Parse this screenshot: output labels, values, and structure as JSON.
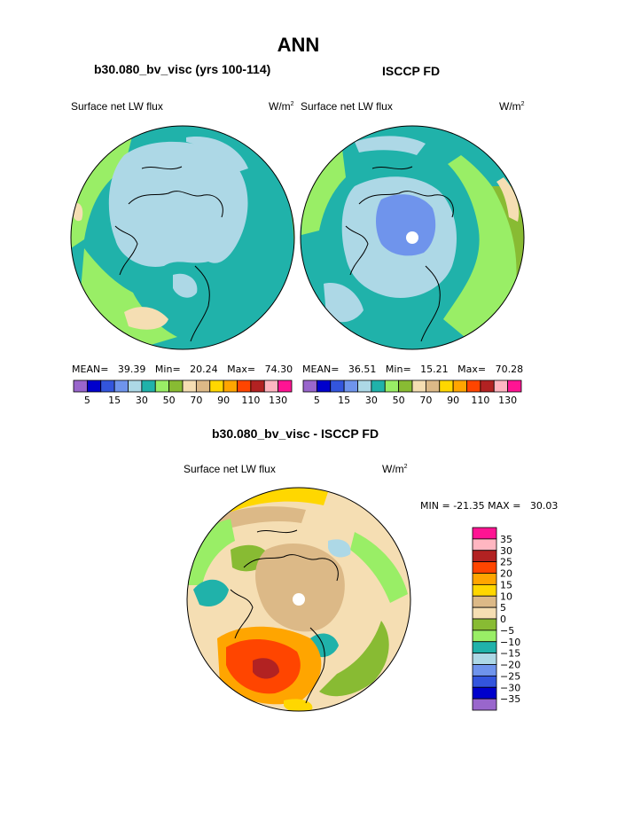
{
  "figure": {
    "season": "ANN",
    "colors": {
      "c1": "#9966cc",
      "c2": "#0000cc",
      "c3": "#3355dd",
      "c4": "#6f94ec",
      "c5": "#add8e6",
      "c6": "#20b2aa",
      "c7": "#99ee66",
      "c8": "#88bb33",
      "c9": "#f5deb3",
      "c10": "#dcb987",
      "c11": "#ffd700",
      "c12": "#ffa500",
      "c13": "#ff4500",
      "c14": "#b22222",
      "c15": "#ffb6c1",
      "c16": "#ff1493",
      "outline": "#000000"
    }
  },
  "chart_data": [
    {
      "type": "heatmap",
      "panel": "model",
      "case_title": "b30.080_bv_visc (yrs 100-114)",
      "variable": "Surface net LW flux",
      "units": "W/m",
      "units_sup": "2",
      "projection": "polar stereographic",
      "stats": {
        "mean_label": "MEAN=",
        "mean": "39.39",
        "min_label": "Min=",
        "min": "20.24",
        "max_label": "Max=",
        "max": "74.30"
      },
      "colorbar": {
        "orientation": "horizontal",
        "levels": [
          5,
          10,
          15,
          20,
          30,
          40,
          50,
          60,
          70,
          80,
          90,
          100,
          110,
          120,
          130
        ],
        "tick_labels": [
          "5",
          "15",
          "30",
          "50",
          "70",
          "90",
          "110",
          "130"
        ],
        "colors": [
          "#9966cc",
          "#0000cc",
          "#3355dd",
          "#6f94ec",
          "#add8e6",
          "#20b2aa",
          "#99ee66",
          "#88bb33",
          "#f5deb3",
          "#dcb987",
          "#ffd700",
          "#ffa500",
          "#ff4500",
          "#b22222",
          "#ffb6c1",
          "#ff1493"
        ]
      }
    },
    {
      "type": "heatmap",
      "panel": "obs",
      "case_title": "ISCCP FD",
      "variable": "Surface net LW flux",
      "units": "W/m",
      "units_sup": "2",
      "projection": "polar stereographic",
      "stats": {
        "mean_label": "MEAN=",
        "mean": "36.51",
        "min_label": "Min=",
        "min": "15.21",
        "max_label": "Max=",
        "max": "70.28"
      },
      "colorbar": {
        "orientation": "horizontal",
        "levels": [
          5,
          10,
          15,
          20,
          30,
          40,
          50,
          60,
          70,
          80,
          90,
          100,
          110,
          120,
          130
        ],
        "tick_labels": [
          "5",
          "15",
          "30",
          "50",
          "70",
          "90",
          "110",
          "130"
        ],
        "colors": [
          "#9966cc",
          "#0000cc",
          "#3355dd",
          "#6f94ec",
          "#add8e6",
          "#20b2aa",
          "#99ee66",
          "#88bb33",
          "#f5deb3",
          "#dcb987",
          "#ffd700",
          "#ffa500",
          "#ff4500",
          "#b22222",
          "#ffb6c1",
          "#ff1493"
        ]
      }
    },
    {
      "type": "heatmap",
      "panel": "difference",
      "case_title": "b30.080_bv_visc - ISCCP FD",
      "variable": "Surface net LW flux",
      "units": "W/m",
      "units_sup": "2",
      "projection": "polar stereographic",
      "stats": {
        "min_label": "MIN =",
        "min": "-21.35",
        "max_label": "MAX =",
        "max": "30.03"
      },
      "colorbar": {
        "orientation": "vertical",
        "levels": [
          35,
          30,
          25,
          20,
          15,
          10,
          5,
          0,
          -5,
          -10,
          -15,
          -20,
          -25,
          -30,
          -35
        ],
        "tick_labels": [
          "35",
          "30",
          "25",
          "20",
          "15",
          "10",
          "5",
          "0",
          "−5",
          "−10",
          "−15",
          "−20",
          "−25",
          "−30",
          "−35"
        ],
        "colors": [
          "#ff1493",
          "#ffb6c1",
          "#b22222",
          "#ff4500",
          "#ffa500",
          "#ffd700",
          "#dcb987",
          "#f5deb3",
          "#88bb33",
          "#99ee66",
          "#20b2aa",
          "#add8e6",
          "#6f94ec",
          "#3355dd",
          "#0000cc",
          "#9966cc"
        ]
      }
    }
  ]
}
